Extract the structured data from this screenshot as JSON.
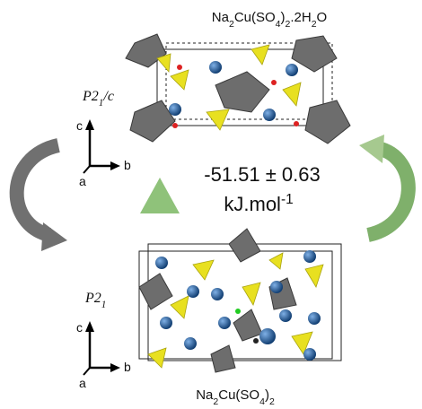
{
  "top_structure": {
    "formula": [
      "Na",
      "2",
      "Cu(SO",
      "4",
      ")",
      "2",
      ".2H",
      "2",
      "O"
    ],
    "space_group": [
      "P2",
      "1",
      "/c"
    ],
    "axes": [
      "c",
      "b",
      "a"
    ]
  },
  "energy": {
    "value": "-51.51 ± 0.63",
    "unit": [
      "kJ.mol",
      "-1"
    ]
  },
  "bottom_structure": {
    "formula": [
      "Na",
      "2",
      "Cu(SO",
      "4",
      ")",
      "2"
    ],
    "space_group": [
      "P2",
      "1"
    ],
    "axes": [
      "c",
      "b",
      "a"
    ]
  }
}
